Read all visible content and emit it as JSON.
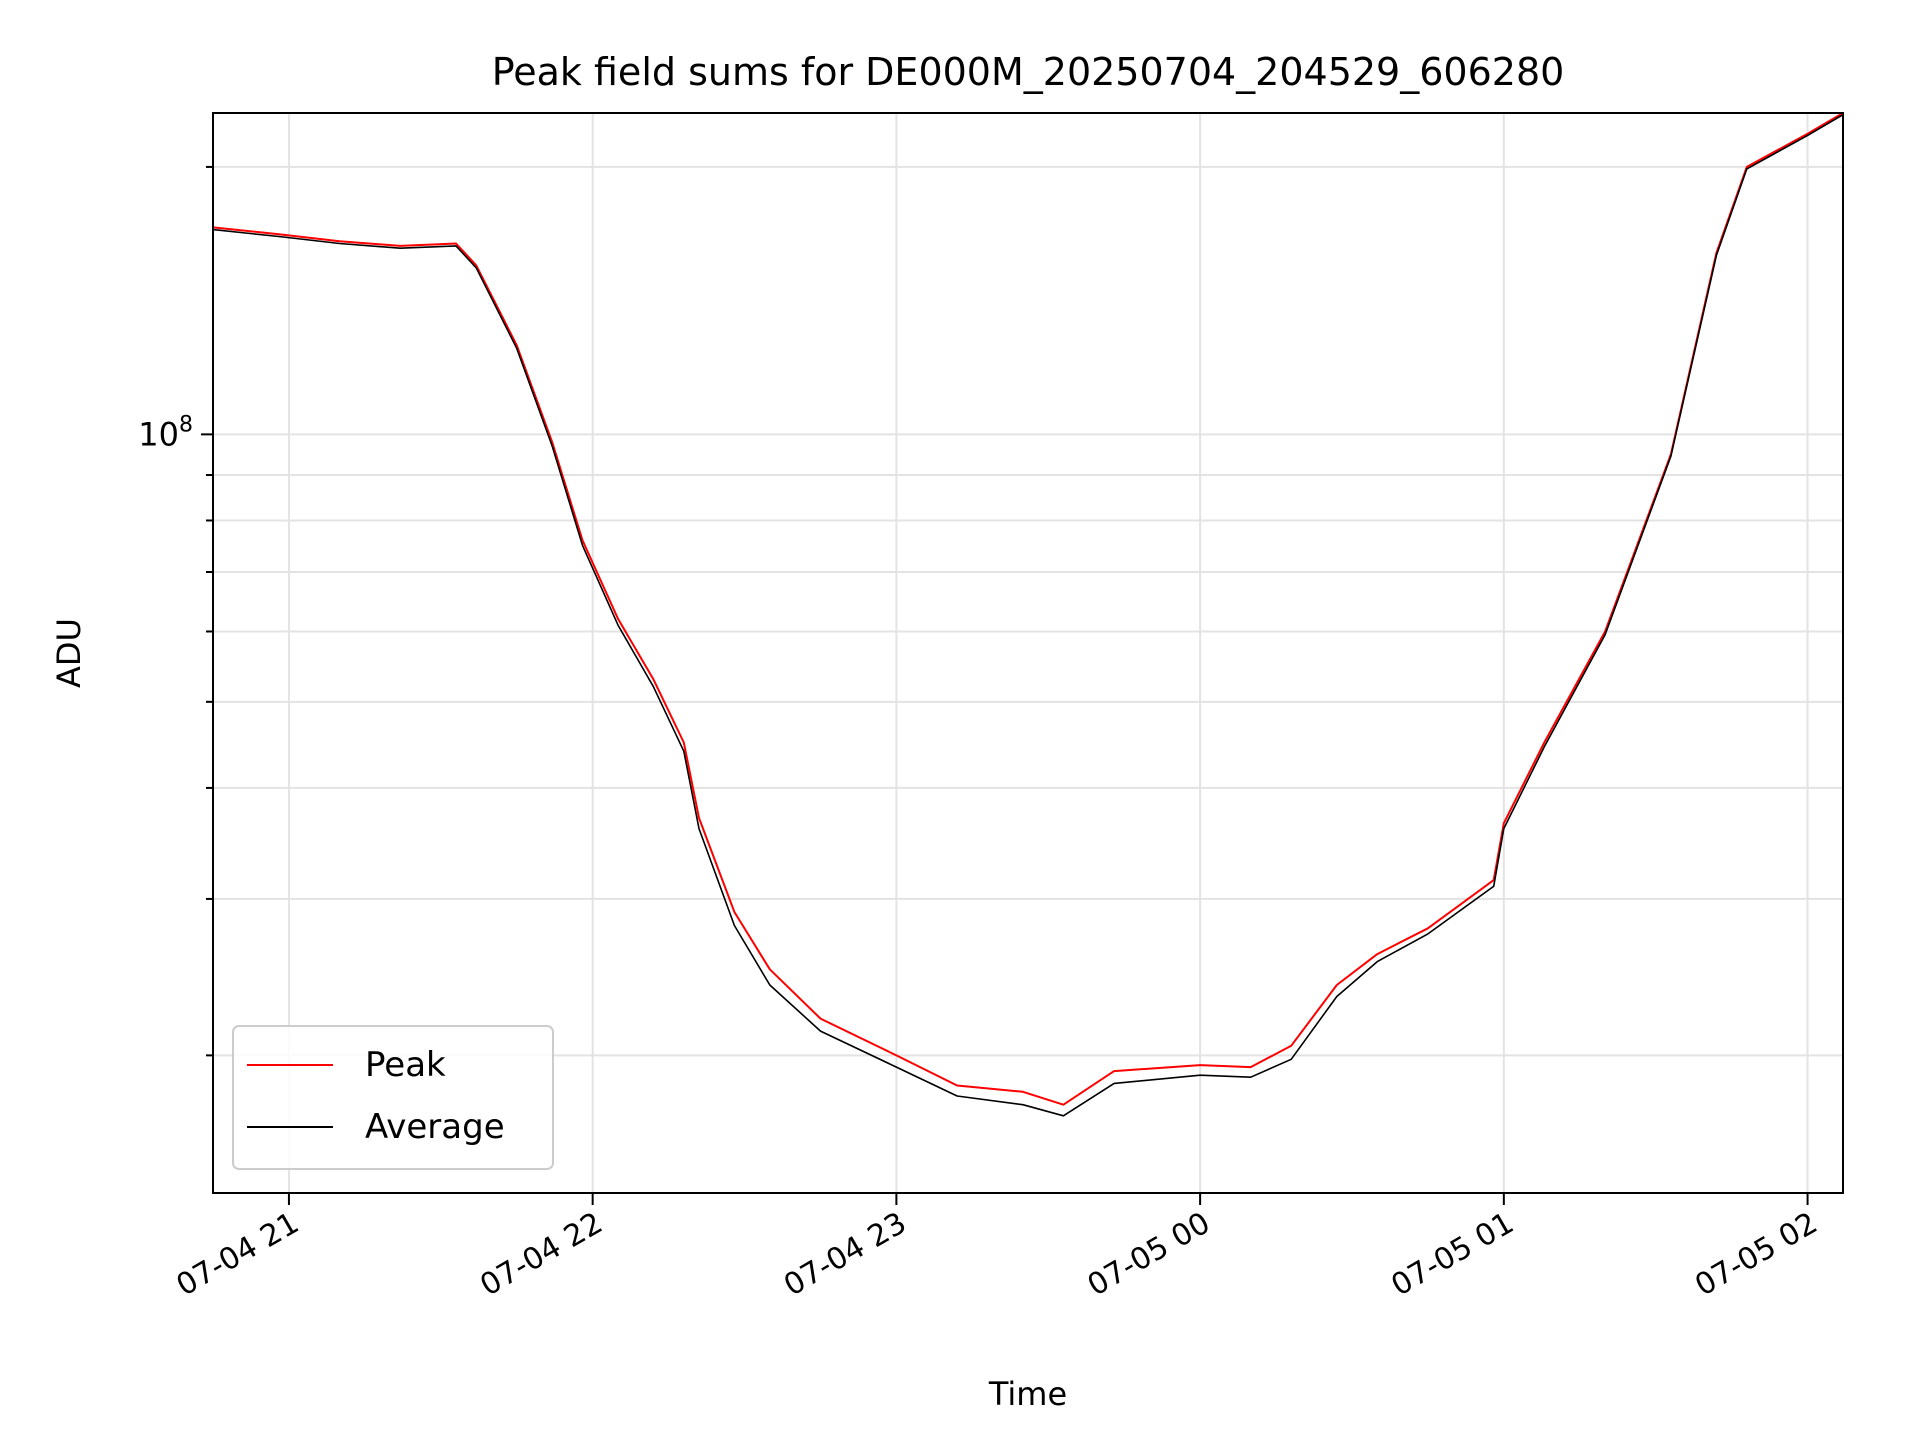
{
  "chart_data": {
    "type": "line",
    "title": "Peak field sums for DE000M_20250704_204529_606280",
    "xlabel": "Time",
    "ylabel": "ADU",
    "yscale": "log",
    "grid": true,
    "legend_position": "lower-left",
    "x_ticks": [
      {
        "value": "2025-07-04T21:00",
        "label": "07-04 21"
      },
      {
        "value": "2025-07-04T22:00",
        "label": "07-04 22"
      },
      {
        "value": "2025-07-04T23:00",
        "label": "07-04 23"
      },
      {
        "value": "2025-07-05T00:00",
        "label": "07-05 00"
      },
      {
        "value": "2025-07-05T01:00",
        "label": "07-05 01"
      },
      {
        "value": "2025-07-05T02:00",
        "label": "07-05 02"
      }
    ],
    "y_ticks": [
      {
        "value": 100000000,
        "base": "10",
        "exponent": "8"
      }
    ],
    "xlim": [
      "2025-07-04T20:45",
      "2025-07-05T02:07"
    ],
    "ylim": [
      14000000,
      230000000
    ],
    "series": [
      {
        "name": "Peak",
        "color": "#ff0000",
        "x": [
          "2025-07-04T20:45",
          "2025-07-04T20:58",
          "2025-07-04T21:10",
          "2025-07-04T21:22",
          "2025-07-04T21:33",
          "2025-07-04T21:37",
          "2025-07-04T21:45",
          "2025-07-04T21:52",
          "2025-07-04T21:58",
          "2025-07-04T22:05",
          "2025-07-04T22:12",
          "2025-07-04T22:18",
          "2025-07-04T22:21",
          "2025-07-04T22:28",
          "2025-07-04T22:35",
          "2025-07-04T22:45",
          "2025-07-04T23:00",
          "2025-07-04T23:12",
          "2025-07-04T23:25",
          "2025-07-04T23:33",
          "2025-07-04T23:43",
          "2025-07-05T00:00",
          "2025-07-05T00:10",
          "2025-07-05T00:18",
          "2025-07-05T00:27",
          "2025-07-05T00:35",
          "2025-07-05T00:45",
          "2025-07-05T00:58",
          "2025-07-05T01:00",
          "2025-07-05T01:08",
          "2025-07-05T01:20",
          "2025-07-05T01:33",
          "2025-07-05T01:42",
          "2025-07-05T01:48",
          "2025-07-05T02:00",
          "2025-07-05T02:07"
        ],
        "values": [
          171000000,
          168000000,
          165000000,
          163000000,
          164000000,
          155000000,
          126000000,
          98000000,
          76000000,
          62000000,
          53000000,
          45000000,
          37000000,
          29000000,
          25000000,
          22000000,
          20000000,
          18500000,
          18200000,
          17600000,
          19200000,
          19500000,
          19400000,
          20500000,
          24000000,
          26000000,
          27800000,
          31500000,
          36500000,
          45000000,
          60000000,
          95000000,
          160000000,
          200000000,
          218000000,
          230000000
        ]
      },
      {
        "name": "Average",
        "color": "#000000",
        "x": [
          "2025-07-04T20:45",
          "2025-07-04T20:58",
          "2025-07-04T21:10",
          "2025-07-04T21:22",
          "2025-07-04T21:33",
          "2025-07-04T21:37",
          "2025-07-04T21:45",
          "2025-07-04T21:52",
          "2025-07-04T21:58",
          "2025-07-04T22:05",
          "2025-07-04T22:12",
          "2025-07-04T22:18",
          "2025-07-04T22:21",
          "2025-07-04T22:28",
          "2025-07-04T22:35",
          "2025-07-04T22:45",
          "2025-07-04T23:00",
          "2025-07-04T23:12",
          "2025-07-04T23:25",
          "2025-07-04T23:33",
          "2025-07-04T23:43",
          "2025-07-05T00:00",
          "2025-07-05T00:10",
          "2025-07-05T00:18",
          "2025-07-05T00:27",
          "2025-07-05T00:35",
          "2025-07-05T00:45",
          "2025-07-05T00:58",
          "2025-07-05T01:00",
          "2025-07-05T01:08",
          "2025-07-05T01:20",
          "2025-07-05T01:33",
          "2025-07-05T01:42",
          "2025-07-05T01:48",
          "2025-07-05T02:00",
          "2025-07-05T02:07"
        ],
        "values": [
          170000000,
          167000000,
          164000000,
          162000000,
          163000000,
          154000000,
          125000000,
          97000000,
          75000000,
          61000000,
          52000000,
          44000000,
          36000000,
          28000000,
          24000000,
          21300000,
          19400000,
          18000000,
          17600000,
          17100000,
          18600000,
          19000000,
          18900000,
          19800000,
          23300000,
          25500000,
          27400000,
          31000000,
          36000000,
          44500000,
          59500000,
          94500000,
          159000000,
          199000000,
          217000000,
          229000000
        ]
      }
    ]
  }
}
